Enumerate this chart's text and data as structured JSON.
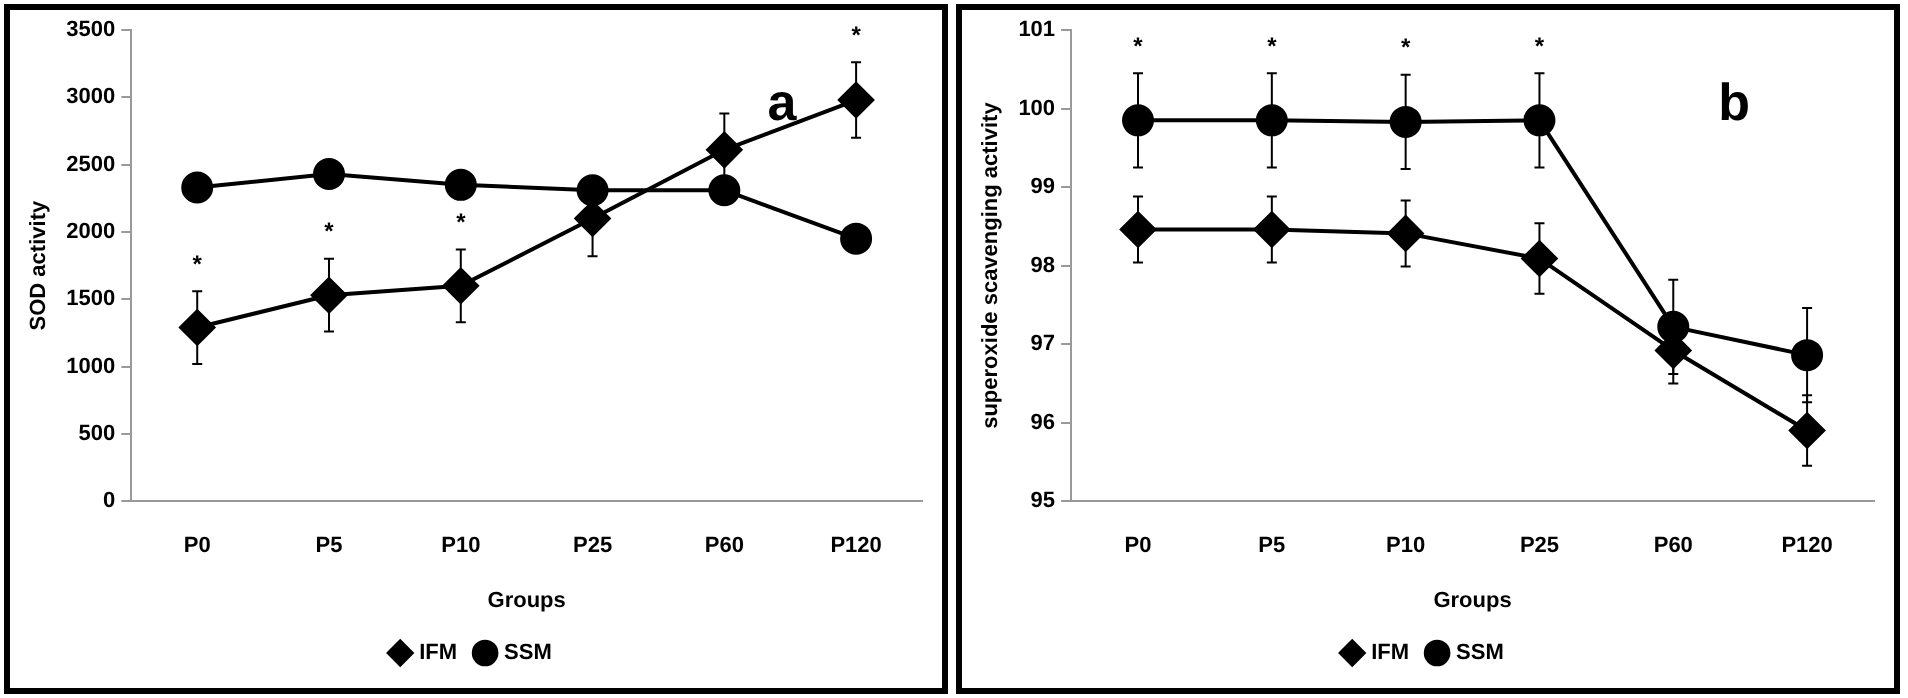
{
  "chart_data": [
    {
      "type": "line",
      "xlabel": "Groups",
      "ylabel": "SOD activity",
      "categories": [
        "P0",
        "P5",
        "P10",
        "P25",
        "P60",
        "P120"
      ],
      "series": [
        {
          "name": "IFM",
          "color": "#000000",
          "marker": "diamond",
          "values": [
            1290,
            1530,
            1600,
            2100,
            2610,
            2980
          ],
          "errors": [
            270,
            270,
            270,
            280,
            270,
            280
          ],
          "value_labels": [
            "*",
            "*",
            "*",
            null,
            null,
            "*"
          ]
        },
        {
          "name": "SSM",
          "color": "#000000",
          "marker": "circle",
          "values": [
            2330,
            2430,
            2350,
            2310,
            2310,
            1950
          ]
        }
      ],
      "ylim": [
        0,
        3500
      ],
      "yticks": [
        0,
        500,
        1000,
        1500,
        2000,
        2500,
        3000,
        3500
      ],
      "grid": false,
      "legend": "bottom",
      "line_style": "solid",
      "annotations": [
        "a"
      ]
    },
    {
      "type": "line",
      "xlabel": "Groups",
      "ylabel": "superoxide scavenging activity",
      "categories": [
        "P0",
        "P5",
        "P10",
        "P25",
        "P60",
        "P120"
      ],
      "series": [
        {
          "name": "IFM",
          "color": "#000000",
          "marker": "diamond",
          "values": [
            98.46,
            98.46,
            98.41,
            98.09,
            96.92,
            95.9
          ],
          "errors": [
            0.42,
            0.42,
            0.42,
            0.45,
            0.42,
            0.45
          ]
        },
        {
          "name": "SSM",
          "color": "#000000",
          "marker": "circle",
          "values": [
            99.85,
            99.85,
            99.83,
            99.85,
            97.22,
            96.86
          ],
          "errors": [
            0.6,
            0.6,
            0.6,
            0.6,
            0.6,
            0.6
          ],
          "value_labels": [
            "*",
            "*",
            "*",
            "*",
            null,
            null
          ]
        }
      ],
      "ylim": [
        95,
        101
      ],
      "yticks": [
        95,
        96,
        97,
        98,
        99,
        100,
        101
      ],
      "grid": false,
      "legend": "bottom",
      "line_style": "solid",
      "annotations": [
        "b"
      ]
    }
  ]
}
